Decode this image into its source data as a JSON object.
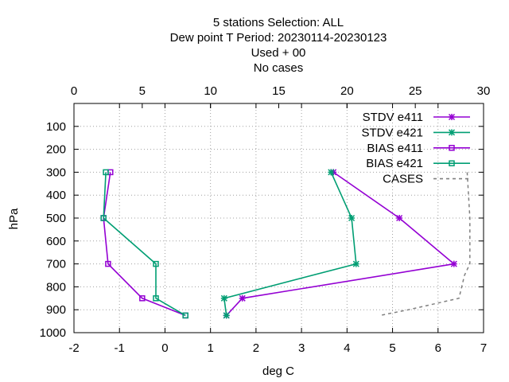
{
  "chart_data": {
    "type": "line",
    "title_lines": [
      "5 stations Selection: ALL",
      "Dew point T  Period: 20230114-20230123",
      "Used   + 00",
      "No cases"
    ],
    "xlabel": "deg C",
    "ylabel": "hPa",
    "x_range": [
      -2,
      7
    ],
    "x_ticks": [
      -2,
      -1,
      0,
      1,
      2,
      3,
      4,
      5,
      6,
      7
    ],
    "x2_range": [
      0,
      30
    ],
    "x2_ticks": [
      0,
      5,
      10,
      15,
      20,
      25,
      30
    ],
    "y_range": [
      0,
      1000
    ],
    "y_reversed": true,
    "y_ticks": [
      100,
      200,
      300,
      400,
      500,
      600,
      700,
      800,
      900,
      1000
    ],
    "grid": true,
    "legend_position": "top-right",
    "series": [
      {
        "name": "STDV e411",
        "color": "#9400d3",
        "marker": "star",
        "axis": "x",
        "points": [
          [
            3.7,
            300
          ],
          [
            5.15,
            500
          ],
          [
            6.35,
            700
          ],
          [
            1.7,
            850
          ],
          [
            1.35,
            925
          ]
        ]
      },
      {
        "name": "STDV e421",
        "color": "#009e73",
        "marker": "star",
        "axis": "x",
        "points": [
          [
            3.65,
            300
          ],
          [
            4.1,
            500
          ],
          [
            4.2,
            700
          ],
          [
            1.3,
            850
          ],
          [
            1.35,
            925
          ]
        ]
      },
      {
        "name": "BIAS e411",
        "color": "#9400d3",
        "marker": "square",
        "axis": "x",
        "points": [
          [
            -1.2,
            300
          ],
          [
            -1.35,
            500
          ],
          [
            -1.25,
            700
          ],
          [
            -0.5,
            850
          ],
          [
            0.45,
            925
          ]
        ]
      },
      {
        "name": "BIAS e421",
        "color": "#009e73",
        "marker": "square",
        "axis": "x",
        "points": [
          [
            -1.3,
            300
          ],
          [
            -1.35,
            500
          ],
          [
            -0.2,
            700
          ],
          [
            -0.2,
            850
          ],
          [
            0.45,
            925
          ]
        ]
      },
      {
        "name": "CASES",
        "color": "#808080",
        "dashed": true,
        "axis": "x2",
        "points": [
          [
            28.8,
            300
          ],
          [
            29.0,
            500
          ],
          [
            29.0,
            700
          ],
          [
            28.6,
            750
          ],
          [
            28.2,
            850
          ],
          [
            24.5,
            900
          ],
          [
            22.4,
            925
          ]
        ]
      }
    ]
  }
}
